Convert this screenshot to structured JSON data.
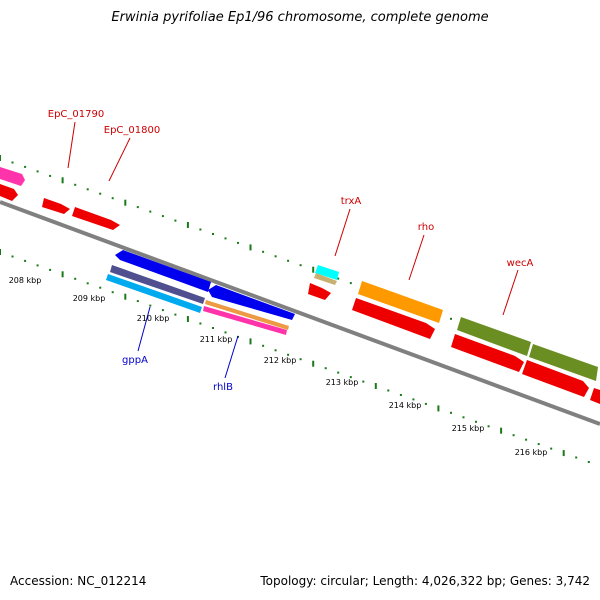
{
  "title": "Erwinia pyrifoliae Ep1/96 chromosome, complete genome",
  "accession": "Accession: NC_012214",
  "summary": "Topology: circular; Length: 4,026,322 bp; Genes: 3,742",
  "ticks": [
    "208 kbp",
    "209 kbp",
    "210 kbp",
    "211 kbp",
    "212 kbp",
    "213 kbp",
    "214 kbp",
    "215 kbp",
    "216 kbp"
  ],
  "labels": [
    {
      "name": "EpC_01790",
      "color": "#cc0000"
    },
    {
      "name": "EpC_01800",
      "color": "#cc0000"
    },
    {
      "name": "trxA",
      "color": "#cc0000"
    },
    {
      "name": "rho",
      "color": "#cc0000"
    },
    {
      "name": "wecA",
      "color": "#cc0000"
    },
    {
      "name": "gppA",
      "color": "#0000cc"
    },
    {
      "name": "rhlB",
      "color": "#0000cc"
    }
  ],
  "colors": {
    "backbone": "#808080",
    "gc_dots": "#1a7a1a",
    "cds_red": "#ee0000",
    "blue": "#0000ee",
    "pink": "#ff33aa",
    "orange": "#ff9900",
    "olive": "#6b8e23",
    "cyan": "#00ffff",
    "tan": "#c8b070",
    "sky": "#00aaee",
    "slate": "#505090"
  }
}
